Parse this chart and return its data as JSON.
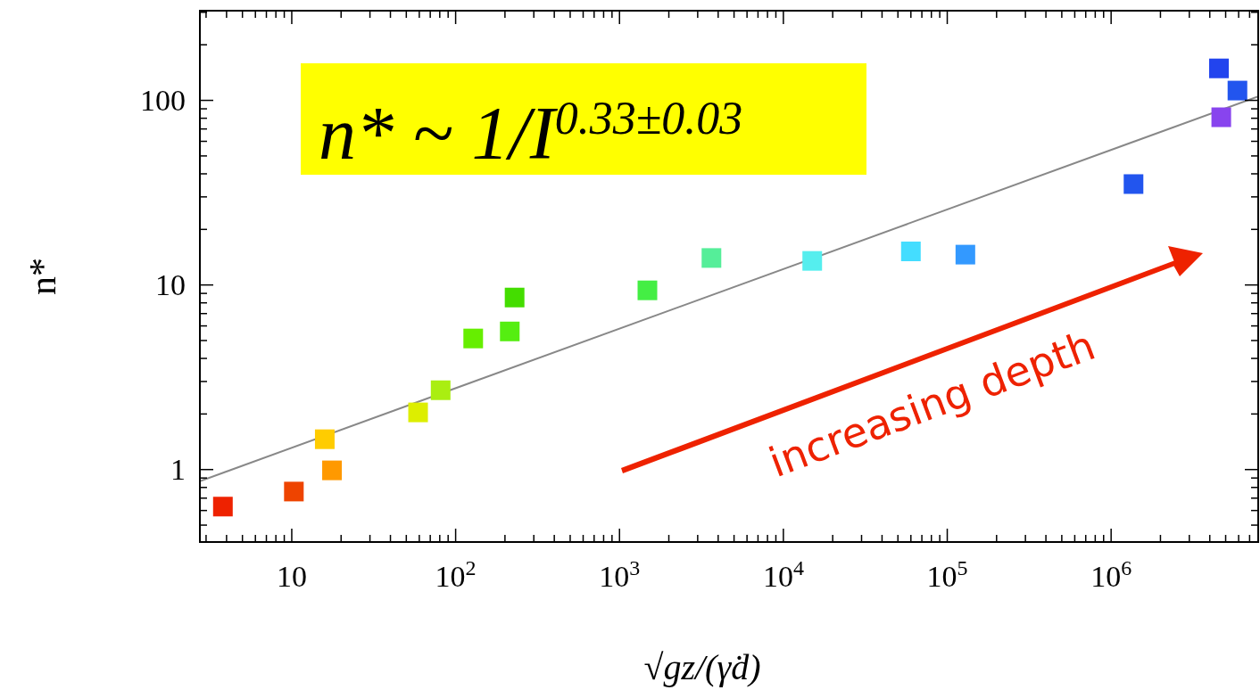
{
  "chart_data": {
    "type": "scatter",
    "xlabel": "√gz/(γ̇d)",
    "ylabel": "n*",
    "log": "xy",
    "grid": false,
    "annotations": [
      "n* ~ 1/I$^{0.33±0.03}$",
      "increasing depth"
    ],
    "xlim": [
      2.75,
      7900000
    ],
    "ylim": [
      0.405,
      306
    ],
    "xticks": [
      {
        "value": 3,
        "label": null
      },
      {
        "value": 4,
        "label": null
      },
      {
        "value": 5,
        "label": null
      },
      {
        "value": 6,
        "label": null
      },
      {
        "value": 7,
        "label": null
      },
      {
        "value": 8,
        "label": null
      },
      {
        "value": 9,
        "label": null
      },
      10,
      {
        "value": 20,
        "label": null
      },
      {
        "value": 30,
        "label": null
      },
      {
        "value": 40,
        "label": null
      },
      {
        "value": 50,
        "label": null
      },
      {
        "value": 60,
        "label": null
      },
      {
        "value": 70,
        "label": null
      },
      {
        "value": 80,
        "label": null
      },
      {
        "value": 90,
        "label": null
      },
      {
        "value": 100,
        "label": "10$^{2}$"
      },
      {
        "value": 200,
        "label": null
      },
      {
        "value": 300,
        "label": null
      },
      {
        "value": 400,
        "label": null
      },
      {
        "value": 500,
        "label": null
      },
      {
        "value": 600,
        "label": null
      },
      {
        "value": 700,
        "label": null
      },
      {
        "value": 800,
        "label": null
      },
      {
        "value": 900,
        "label": null
      },
      {
        "value": 1000,
        "label": "10$^{3}$"
      },
      {
        "value": 2000,
        "label": null
      },
      {
        "value": 3000,
        "label": null
      },
      {
        "value": 4000,
        "label": null
      },
      {
        "value": 5000,
        "label": null
      },
      {
        "value": 6000,
        "label": null
      },
      {
        "value": 7000,
        "label": null
      },
      {
        "value": 8000,
        "label": null
      },
      {
        "value": 9000,
        "label": null
      },
      {
        "value": 10000,
        "label": "10$^{4}$"
      },
      {
        "value": 20000,
        "label": null
      },
      {
        "value": 30000,
        "label": null
      },
      {
        "value": 40000,
        "label": null
      },
      {
        "value": 50000,
        "label": null
      },
      {
        "value": 60000,
        "label": null
      },
      {
        "value": 70000,
        "label": null
      },
      {
        "value": 80000,
        "label": null
      },
      {
        "value": 90000,
        "label": null
      },
      {
        "value": 100000,
        "label": "10$^{5}$"
      },
      {
        "value": 200000,
        "label": null
      },
      {
        "value": 300000,
        "label": null
      },
      {
        "value": 400000,
        "label": null
      },
      {
        "value": 500000,
        "label": null
      },
      {
        "value": 600000,
        "label": null
      },
      {
        "value": 700000,
        "label": null
      },
      {
        "value": 800000,
        "label": null
      },
      {
        "value": 900000,
        "label": null
      },
      {
        "value": 1000000,
        "label": "10$^{6}$"
      },
      {
        "value": 2000000,
        "label": null
      },
      {
        "value": 3000000,
        "label": null
      },
      {
        "value": 4000000,
        "label": null
      },
      {
        "value": 5000000,
        "label": null
      },
      {
        "value": 6000000,
        "label": null
      },
      {
        "value": 7000000,
        "label": null
      }
    ],
    "yticks": [
      {
        "value": 0.5,
        "label": null
      },
      {
        "value": 0.6,
        "label": null
      },
      {
        "value": 0.7,
        "label": null
      },
      {
        "value": 0.8,
        "label": null
      },
      {
        "value": 0.9,
        "label": null
      },
      1,
      {
        "value": 2,
        "label": null
      },
      {
        "value": 3,
        "label": null
      },
      {
        "value": 4,
        "label": null
      },
      {
        "value": 5,
        "label": null
      },
      {
        "value": 6,
        "label": null
      },
      {
        "value": 7,
        "label": null
      },
      {
        "value": 8,
        "label": null
      },
      {
        "value": 9,
        "label": null
      },
      10,
      {
        "value": 20,
        "label": null
      },
      {
        "value": 30,
        "label": null
      },
      {
        "value": 40,
        "label": null
      },
      {
        "value": 50,
        "label": null
      },
      {
        "value": 60,
        "label": null
      },
      {
        "value": 70,
        "label": null
      },
      {
        "value": 80,
        "label": null
      },
      {
        "value": 90,
        "label": null
      },
      100,
      {
        "value": 200,
        "label": null
      },
      {
        "value": 300,
        "label": null
      }
    ],
    "series": [
      {
        "marker": "square",
        "x": [
          3.8,
          10.3,
          15.9,
          17.6,
          59,
          81,
          128,
          214,
          229,
          1480,
          3640,
          15000,
          60000,
          129000,
          1370000,
          4550000,
          5900000,
          4700000
        ],
        "values": [
          0.63,
          0.76,
          1.46,
          0.99,
          2.04,
          2.69,
          5.13,
          5.6,
          8.55,
          9.35,
          14,
          13.5,
          15.2,
          14.6,
          35.2,
          149,
          113,
          81
        ],
        "colors": [
          "#ee2200",
          "#ee4400",
          "#ffcc00",
          "#ff9900",
          "#ddee00",
          "#aaee11",
          "#66ee00",
          "#55ee11",
          "#44dd00",
          "#44ee44",
          "#55ee99",
          "#55eeee",
          "#44ddff",
          "#3399ff",
          "#2255ee",
          "#2244ee",
          "#2255ee",
          "#8844ee"
        ]
      },
      {
        "type": "line",
        "x": [
          2.75,
          7900000
        ],
        "values": [
          0.865,
          105
        ],
        "color": "#888888",
        "marker": "none"
      }
    ]
  }
}
